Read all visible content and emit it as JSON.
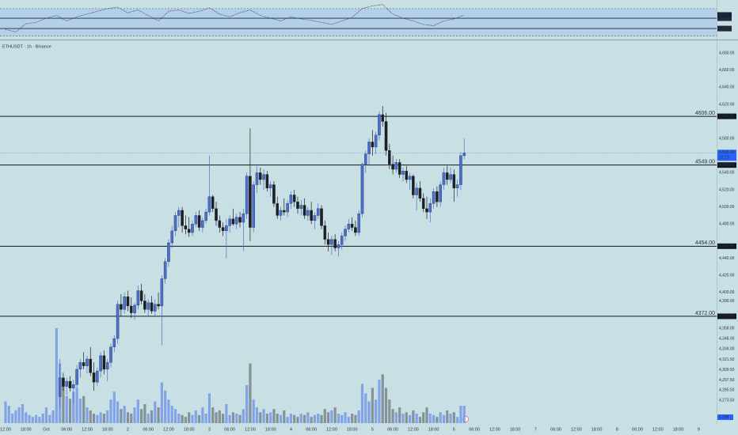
{
  "chart_data": {
    "type": "candlestick",
    "title": "ETHUSDT · 1h · Binance",
    "up_color": "#4a6fd1",
    "down_color": "#1c1f26",
    "volume_up_color": "#7b9ce6",
    "volume_down_color": "#7d8b8f",
    "ylim": [
      4247,
      4694
    ],
    "xlim": [
      -1.63,
      209.3
    ],
    "grid": false,
    "yticks": [
      {
        "value": 4680,
        "label": "4,680.00"
      },
      {
        "value": 4660,
        "label": "4,660.00"
      },
      {
        "value": 4640,
        "label": "4,640.00"
      },
      {
        "value": 4620,
        "label": "4,620.00"
      },
      {
        "value": 4580,
        "label": "4,580.00"
      },
      {
        "value": 4540,
        "label": "4,540.00"
      },
      {
        "value": 4520,
        "label": "4,520.00"
      },
      {
        "value": 4500,
        "label": "4,500.00"
      },
      {
        "value": 4480,
        "label": "4,480.00"
      },
      {
        "value": 4440,
        "label": "4,440.00"
      },
      {
        "value": 4420,
        "label": "4,420.00"
      },
      {
        "value": 4400,
        "label": "4,400.00"
      },
      {
        "value": 4390,
        "label": "4,390.00"
      },
      {
        "value": 4358,
        "label": "4,358.00"
      },
      {
        "value": 4346,
        "label": "4,346.00"
      },
      {
        "value": 4334,
        "label": "4,334.00"
      },
      {
        "value": 4321.5,
        "label": "4,321.50"
      },
      {
        "value": 4309.5,
        "label": "4,309.50"
      },
      {
        "value": 4297.5,
        "label": "4,297.50"
      },
      {
        "value": 4285.5,
        "label": "4,285.50"
      },
      {
        "value": 4273.5,
        "label": "4,273.50"
      }
    ],
    "xticks": [
      {
        "value": 0,
        "label": "12:00"
      },
      {
        "value": 6,
        "label": "18:00"
      },
      {
        "value": 12,
        "label": "Oct"
      },
      {
        "value": 18,
        "label": "06:00"
      },
      {
        "value": 24,
        "label": "12:00"
      },
      {
        "value": 30,
        "label": "18:00"
      },
      {
        "value": 36,
        "label": "2"
      },
      {
        "value": 42,
        "label": "06:00"
      },
      {
        "value": 48,
        "label": "12:00"
      },
      {
        "value": 54,
        "label": "18:00"
      },
      {
        "value": 60,
        "label": "3"
      },
      {
        "value": 66,
        "label": "06:00"
      },
      {
        "value": 72,
        "label": "12:00"
      },
      {
        "value": 78,
        "label": "18:00"
      },
      {
        "value": 84,
        "label": "4"
      },
      {
        "value": 90,
        "label": "06:00"
      },
      {
        "value": 96,
        "label": "12:00"
      },
      {
        "value": 102,
        "label": "18:00"
      },
      {
        "value": 108,
        "label": "5"
      },
      {
        "value": 114,
        "label": "06:00"
      },
      {
        "value": 120,
        "label": "12:00"
      },
      {
        "value": 126,
        "label": "18:00"
      },
      {
        "value": 132,
        "label": "6"
      },
      {
        "value": 138,
        "label": "06:00"
      },
      {
        "value": 144,
        "label": "12:00"
      },
      {
        "value": 150,
        "label": "18:00"
      },
      {
        "value": 156,
        "label": "7"
      },
      {
        "value": 162,
        "label": "06:00"
      },
      {
        "value": 168,
        "label": "12:00"
      },
      {
        "value": 174,
        "label": "18:00"
      },
      {
        "value": 180,
        "label": "8"
      },
      {
        "value": 186,
        "label": "06:00"
      },
      {
        "value": 192,
        "label": "12:00"
      },
      {
        "value": 198,
        "label": "18:00"
      },
      {
        "value": 204,
        "label": "9"
      }
    ],
    "levels": [
      {
        "value": 4606,
        "label": "4606.00",
        "axis_label": "4,606.00"
      },
      {
        "value": 4549,
        "label": "4549.00",
        "axis_label": "4,549.00"
      },
      {
        "value": 4454,
        "label": "4454.00",
        "axis_label": "4,454.00"
      },
      {
        "value": 4372,
        "label": "4372.00",
        "axis_label": "4,372.00"
      }
    ],
    "close_label": "4,563.19",
    "countdown": "22:13",
    "x": [
      0,
      1,
      2,
      3,
      4,
      5,
      6,
      7,
      8,
      9,
      10,
      11,
      12,
      13,
      14,
      15,
      16,
      17,
      18,
      19,
      20,
      21,
      22,
      23,
      24,
      25,
      26,
      27,
      28,
      29,
      30,
      31,
      32,
      33,
      34,
      35,
      36,
      37,
      38,
      39,
      40,
      41,
      42,
      43,
      44,
      45,
      46,
      47,
      48,
      49,
      50,
      51,
      52,
      53,
      54,
      55,
      56,
      57,
      58,
      59,
      60,
      61,
      62,
      63,
      64,
      65,
      66,
      67,
      68,
      69,
      70,
      71,
      72,
      73,
      74,
      75,
      76,
      77,
      78,
      79,
      80,
      81,
      82,
      83,
      84,
      85,
      86,
      87,
      88,
      89,
      90,
      91,
      92,
      93,
      94,
      95,
      96,
      97,
      98,
      99,
      100,
      101,
      102,
      103,
      104,
      105,
      106,
      107,
      108,
      109,
      110,
      111,
      112,
      113,
      114,
      115,
      116,
      117,
      118,
      119,
      120,
      121,
      122,
      123,
      124,
      125,
      126,
      127,
      128,
      129,
      130,
      131,
      132,
      133,
      134,
      135
    ],
    "candles": [
      null,
      null,
      null,
      null,
      null,
      null,
      null,
      null,
      null,
      null,
      null,
      null,
      null,
      null,
      null,
      null,
      [
        4278,
        4322,
        4266,
        4300
      ],
      [
        4300,
        4306,
        4285,
        4290
      ],
      [
        4290,
        4300,
        4280,
        4296
      ],
      [
        4296,
        4302,
        4284,
        4288
      ],
      [
        4288,
        4298,
        4270,
        4292
      ],
      [
        4292,
        4315,
        4288,
        4310
      ],
      [
        4310,
        4322,
        4300,
        4318
      ],
      [
        4318,
        4330,
        4310,
        4314
      ],
      [
        4314,
        4326,
        4305,
        4322
      ],
      [
        4322,
        4336,
        4302,
        4306
      ],
      [
        4306,
        4318,
        4285,
        4295
      ],
      [
        4295,
        4312,
        4290,
        4308
      ],
      [
        4308,
        4330,
        4300,
        4326
      ],
      [
        4326,
        4332,
        4304,
        4310
      ],
      [
        4310,
        4322,
        4296,
        4318
      ],
      [
        4318,
        4340,
        4312,
        4336
      ],
      [
        4336,
        4350,
        4330,
        4346
      ],
      [
        4346,
        4390,
        4340,
        4386
      ],
      [
        4386,
        4398,
        4372,
        4380
      ],
      [
        4380,
        4400,
        4375,
        4395
      ],
      [
        4395,
        4402,
        4378,
        4384
      ],
      [
        4384,
        4394,
        4370,
        4376
      ],
      [
        4376,
        4388,
        4368,
        4385
      ],
      [
        4385,
        4408,
        4380,
        4402
      ],
      [
        4402,
        4410,
        4386,
        4390
      ],
      [
        4390,
        4398,
        4376,
        4380
      ],
      [
        4380,
        4392,
        4372,
        4388
      ],
      [
        4388,
        4396,
        4375,
        4378
      ],
      [
        4378,
        4392,
        4372,
        4386
      ],
      [
        4386,
        4400,
        4380,
        4384
      ],
      [
        4384,
        4420,
        4338,
        4416
      ],
      [
        4416,
        4440,
        4410,
        4436
      ],
      [
        4436,
        4462,
        4430,
        4458
      ],
      [
        4458,
        4478,
        4452,
        4472
      ],
      [
        4472,
        4494,
        4466,
        4490
      ],
      [
        4490,
        4500,
        4476,
        4496
      ],
      [
        4496,
        4500,
        4470,
        4478
      ],
      [
        4478,
        4490,
        4468,
        4474
      ],
      [
        4474,
        4488,
        4465,
        4470
      ],
      [
        4470,
        4484,
        4466,
        4480
      ],
      [
        4480,
        4494,
        4476,
        4490
      ],
      [
        4490,
        4496,
        4472,
        4476
      ],
      [
        4476,
        4488,
        4470,
        4484
      ],
      [
        4484,
        4498,
        4480,
        4494
      ],
      [
        4494,
        4560,
        4490,
        4512
      ],
      [
        4512,
        4514,
        4494,
        4498
      ],
      [
        4498,
        4506,
        4478,
        4484
      ],
      [
        4484,
        4490,
        4470,
        4476
      ],
      [
        4476,
        4482,
        4466,
        4472
      ],
      [
        4472,
        4486,
        4440,
        4478
      ],
      [
        4478,
        4490,
        4470,
        4486
      ],
      [
        4486,
        4498,
        4478,
        4480
      ],
      [
        4480,
        4492,
        4474,
        4488
      ],
      [
        4488,
        4494,
        4476,
        4482
      ],
      [
        4482,
        4498,
        4448,
        4492
      ],
      [
        4492,
        4540,
        4486,
        4536
      ],
      [
        4536,
        4592,
        4460,
        4476
      ],
      [
        4476,
        4530,
        4470,
        4526
      ],
      [
        4526,
        4548,
        4516,
        4540
      ],
      [
        4540,
        4546,
        4526,
        4532
      ],
      [
        4532,
        4544,
        4520,
        4538
      ],
      [
        4538,
        4542,
        4518,
        4522
      ],
      [
        4522,
        4530,
        4512,
        4526
      ],
      [
        4526,
        4530,
        4500,
        4504
      ],
      [
        4504,
        4512,
        4486,
        4490
      ],
      [
        4490,
        4500,
        4484,
        4496
      ],
      [
        4496,
        4510,
        4490,
        4494
      ],
      [
        4494,
        4508,
        4488,
        4504
      ],
      [
        4504,
        4518,
        4498,
        4514
      ],
      [
        4514,
        4520,
        4500,
        4506
      ],
      [
        4506,
        4512,
        4492,
        4498
      ],
      [
        4498,
        4508,
        4490,
        4502
      ],
      [
        4502,
        4510,
        4486,
        4490
      ],
      [
        4490,
        4500,
        4484,
        4496
      ],
      [
        4496,
        4506,
        4480,
        4484
      ],
      [
        4484,
        4494,
        4474,
        4490
      ],
      [
        4490,
        4504,
        4486,
        4498
      ],
      [
        4498,
        4502,
        4474,
        4478
      ],
      [
        4478,
        4484,
        4456,
        4462
      ],
      [
        4462,
        4470,
        4448,
        4456
      ],
      [
        4456,
        4466,
        4444,
        4462
      ],
      [
        4462,
        4468,
        4448,
        4452
      ],
      [
        4452,
        4460,
        4442,
        4456
      ],
      [
        4456,
        4470,
        4450,
        4466
      ],
      [
        4466,
        4478,
        4460,
        4474
      ],
      [
        4474,
        4486,
        4470,
        4480
      ],
      [
        4480,
        4488,
        4472,
        4476
      ],
      [
        4476,
        4484,
        4466,
        4470
      ],
      [
        4470,
        4496,
        4466,
        4492
      ],
      [
        4492,
        4552,
        4488,
        4550
      ],
      [
        4550,
        4566,
        4540,
        4562
      ],
      [
        4562,
        4580,
        4548,
        4576
      ],
      [
        4576,
        4590,
        4560,
        4570
      ],
      [
        4570,
        4588,
        4562,
        4584
      ],
      [
        4584,
        4612,
        4578,
        4608
      ],
      [
        4608,
        4618,
        4594,
        4600
      ],
      [
        4600,
        4610,
        4560,
        4566
      ],
      [
        4566,
        4574,
        4544,
        4550
      ],
      [
        4550,
        4560,
        4538,
        4544
      ],
      [
        4544,
        4556,
        4540,
        4552
      ],
      [
        4552,
        4556,
        4534,
        4538
      ],
      [
        4538,
        4546,
        4530,
        4542
      ],
      [
        4542,
        4548,
        4528,
        4532
      ],
      [
        4532,
        4540,
        4520,
        4536
      ],
      [
        4536,
        4538,
        4510,
        4514
      ],
      [
        4514,
        4528,
        4496,
        4522
      ],
      [
        4522,
        4530,
        4506,
        4510
      ],
      [
        4510,
        4516,
        4494,
        4498
      ],
      [
        4498,
        4512,
        4486,
        4494
      ],
      [
        4494,
        4510,
        4482,
        4504
      ],
      [
        4504,
        4522,
        4498,
        4518
      ],
      [
        4518,
        4524,
        4500,
        4506
      ],
      [
        4506,
        4530,
        4500,
        4526
      ],
      [
        4526,
        4546,
        4520,
        4540
      ],
      [
        4540,
        4548,
        4526,
        4532
      ],
      [
        4532,
        4546,
        4528,
        4538
      ],
      [
        4538,
        4544,
        4506,
        4522
      ],
      [
        4522,
        4532,
        4512,
        4526
      ],
      [
        4526,
        4564,
        4520,
        4560
      ],
      [
        4560,
        4580,
        4556,
        4563.19
      ]
    ],
    "volume": [
      8,
      6.4,
      3.5,
      4.7,
      5.8,
      7,
      4,
      3,
      2.3,
      3,
      2.3,
      3.5,
      5.8,
      3,
      4.7,
      35,
      22,
      16,
      10,
      9,
      11.6,
      13,
      9,
      10,
      5.8,
      4.7,
      3.5,
      3,
      4,
      3.5,
      4.7,
      8.7,
      11.6,
      8,
      5.2,
      6.4,
      4,
      3.5,
      5.8,
      8.7,
      5.2,
      7,
      3.5,
      4.7,
      8,
      5.8,
      15,
      12,
      8.7,
      6.4,
      5.2,
      3.5,
      3,
      2.3,
      4,
      3,
      4.7,
      3,
      5.8,
      3.5,
      11,
      5.8,
      4,
      4.7,
      3.5,
      7,
      3,
      4,
      3.5,
      3,
      5.2,
      14,
      22,
      8.7,
      5.8,
      4,
      5.2,
      3.5,
      4,
      5.2,
      3.5,
      3,
      4.7,
      2.3,
      3.5,
      3,
      2.3,
      3.5,
      3,
      4,
      2.3,
      3,
      3.5,
      3,
      5.2,
      4,
      4.7,
      5.8,
      3.5,
      3,
      4,
      2.3,
      3.5,
      3,
      4.7,
      14.5,
      11,
      8,
      13,
      8.7,
      16,
      18,
      13,
      8.7,
      5.2,
      4,
      5.8,
      3.5,
      4,
      3,
      4.7,
      3.5,
      2.3,
      4,
      5.8,
      3.5,
      3,
      2.3,
      4,
      3,
      4.7,
      3.5,
      4,
      2.3,
      6.4,
      6.398
    ],
    "rsi": {
      "color": "#2a3a55",
      "band_color": "#b4d0e6",
      "ylim": [
        25,
        82.5
      ],
      "dashed_levels": [
        70,
        30
      ],
      "levels": [
        {
          "value": 56,
          "label": "56.00"
        },
        {
          "value": 41,
          "label": "41.00"
        }
      ],
      "last_label": "60.72",
      "x": [
        0,
        3,
        6,
        9,
        12,
        15,
        18,
        21,
        24,
        27,
        30,
        33,
        36,
        39,
        42,
        45,
        48,
        51,
        54,
        57,
        60,
        63,
        66,
        69,
        72,
        75,
        78,
        81,
        84,
        87,
        90,
        93,
        96,
        99,
        102,
        105,
        108,
        111,
        114,
        117,
        120,
        123,
        126,
        129,
        132,
        135
      ],
      "values": [
        40,
        36,
        48,
        50,
        56,
        60,
        52,
        58,
        62,
        66,
        70,
        72,
        64,
        68,
        60,
        52,
        66,
        68,
        63,
        66,
        71,
        62,
        58,
        64,
        68,
        60,
        56,
        52,
        58,
        55,
        53,
        50,
        47,
        52,
        57,
        70,
        74,
        76,
        62,
        56,
        52,
        47,
        45,
        52,
        55,
        60.72
      ]
    }
  }
}
